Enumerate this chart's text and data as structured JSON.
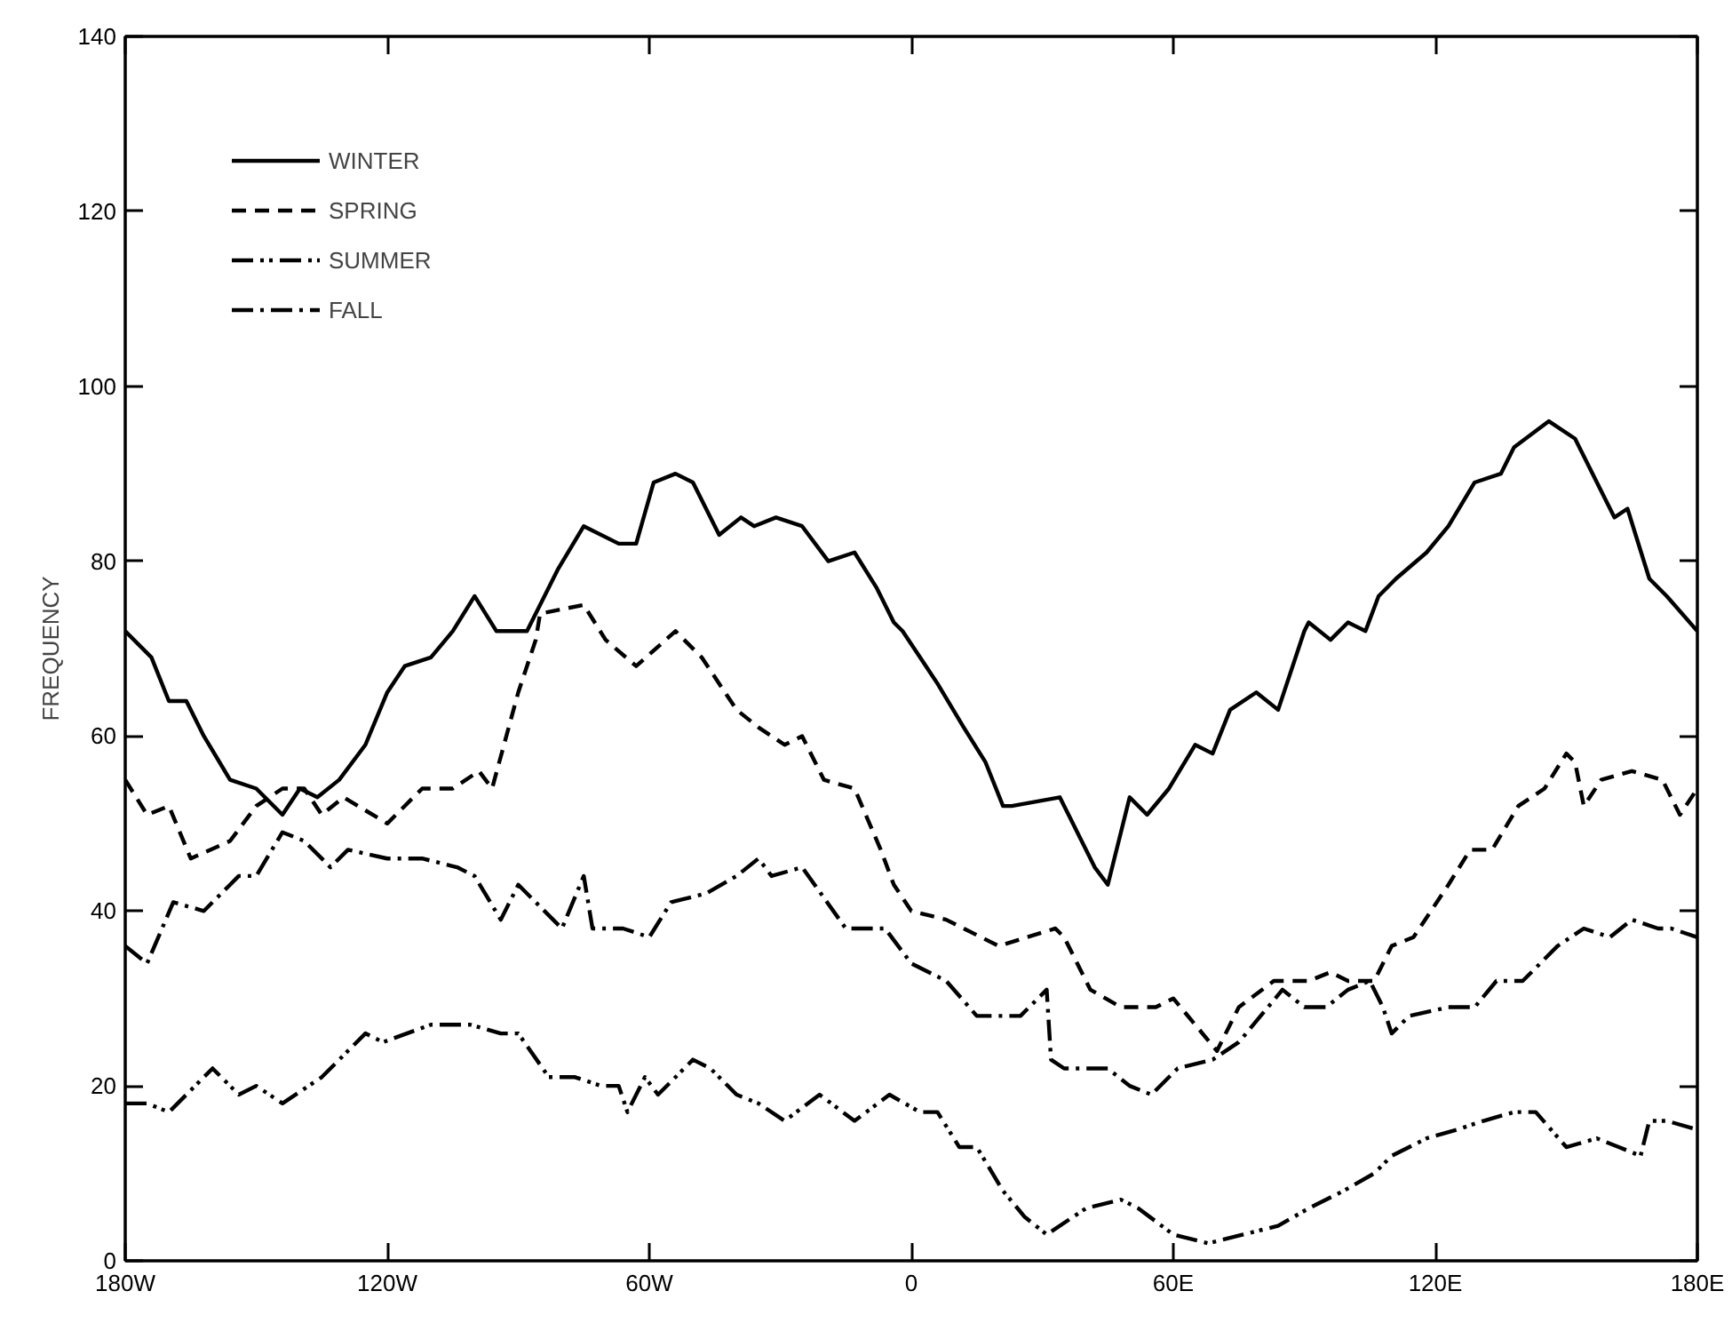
{
  "chart_data": {
    "type": "line",
    "ylabel": "FREQUENCY",
    "xlim": [
      -180,
      180
    ],
    "ylim": [
      0,
      140
    ],
    "xticks": [
      {
        "value": -180,
        "label": "180W"
      },
      {
        "value": -120,
        "label": "120W"
      },
      {
        "value": -60,
        "label": "60W"
      },
      0,
      {
        "value": 60,
        "label": "60E"
      },
      {
        "value": 120,
        "label": "120E"
      },
      {
        "value": 180,
        "label": "180E"
      }
    ],
    "yticks": [
      0,
      20,
      40,
      60,
      80,
      100,
      120,
      140
    ],
    "grid": false,
    "legend": "top left",
    "marker": "none",
    "series": [
      {
        "name": "WINTER",
        "color": "#000000",
        "line_style": "solid",
        "x": [
          -180,
          -174,
          -170,
          -166,
          -162,
          -156,
          -150,
          -144,
          -140,
          -136,
          -131,
          -125,
          -120,
          -116,
          -110,
          -105,
          -100,
          -95,
          -88,
          -81,
          -75,
          -67,
          -63,
          -59,
          -54,
          -50,
          -44,
          -39,
          -36,
          -31,
          -25,
          -19,
          -13,
          -8,
          -4,
          -2,
          2,
          6,
          12,
          17,
          21,
          23,
          34,
          37,
          42,
          45,
          48,
          50,
          54,
          59,
          65,
          69,
          73,
          79,
          84,
          90,
          91,
          96,
          100,
          104,
          107,
          111,
          118,
          123,
          129,
          135,
          138,
          146,
          152,
          157,
          161,
          164,
          169,
          173,
          180
        ],
        "values": [
          72,
          69,
          64,
          64,
          60,
          55,
          54,
          51,
          54,
          53,
          55,
          59,
          65,
          68,
          69,
          72,
          76,
          72,
          72,
          79,
          84,
          82,
          82,
          89,
          90,
          89,
          83,
          85,
          84,
          85,
          84,
          80,
          81,
          77,
          73,
          72,
          69,
          66,
          61,
          57,
          52,
          52,
          53,
          50,
          45,
          43,
          49,
          53,
          51,
          54,
          59,
          58,
          63,
          65,
          63,
          72,
          73,
          71,
          73,
          72,
          76,
          78,
          81,
          84,
          89,
          90,
          93,
          96,
          94,
          89,
          85,
          86,
          78,
          76,
          72
        ]
      },
      {
        "name": "SPRING",
        "color": "#000000",
        "line_style": "dashed",
        "x": [
          -180,
          -175,
          -170,
          -165,
          -156,
          -150,
          -144,
          -139,
          -135,
          -130,
          -120,
          -112,
          -105,
          -99,
          -96,
          -90,
          -86,
          -85,
          -75,
          -70,
          -63,
          -54,
          -48,
          -40,
          -35,
          -29,
          -25,
          -20,
          -13,
          -7,
          -4,
          0,
          8,
          20,
          33,
          35,
          41,
          48,
          56,
          60,
          65,
          70,
          75,
          83,
          91,
          96,
          100,
          106,
          110,
          115,
          123,
          128,
          133,
          139,
          145,
          150,
          152,
          154,
          158,
          165,
          172,
          176,
          180
        ],
        "values": [
          55,
          51,
          52,
          46,
          48,
          52,
          54,
          54,
          51,
          53,
          50,
          54,
          54,
          56,
          54,
          65,
          71,
          74,
          75,
          71,
          68,
          72,
          69,
          63,
          61,
          59,
          60,
          55,
          54,
          47,
          43,
          40,
          39,
          36,
          38,
          37,
          31,
          29,
          29,
          30,
          27,
          24,
          29,
          32,
          32,
          33,
          32,
          32,
          36,
          37,
          43,
          47,
          47,
          52,
          54,
          58,
          57,
          52,
          55,
          56,
          55,
          51,
          54
        ]
      },
      {
        "name": "SUMMER",
        "color": "#000000",
        "line_style": "dashdotdot",
        "x": [
          -180,
          -175,
          -170,
          -166,
          -160,
          -154,
          -150,
          -144,
          -135,
          -125,
          -121,
          -110,
          -101,
          -94,
          -90,
          -83,
          -77,
          -71,
          -67,
          -65,
          -61,
          -58,
          -50,
          -46,
          -40,
          -35,
          -29,
          -21,
          -13,
          -5,
          2,
          6,
          11,
          15,
          21,
          26,
          31,
          40,
          48,
          52,
          60,
          68,
          76,
          84,
          91,
          99,
          106,
          110,
          118,
          125,
          131,
          138,
          143,
          150,
          157,
          162,
          167,
          169,
          173,
          180
        ],
        "values": [
          18,
          18,
          17,
          19,
          22,
          19,
          20,
          18,
          21,
          26,
          25,
          27,
          27,
          26,
          26,
          21,
          21,
          20,
          20,
          17,
          21,
          19,
          23,
          22,
          19,
          18,
          16,
          19,
          16,
          19,
          17,
          17,
          13,
          13,
          8,
          5,
          3,
          6,
          7,
          6,
          3,
          2,
          3,
          4,
          6,
          8,
          10,
          12,
          14,
          15,
          16,
          17,
          17,
          13,
          14,
          13,
          12,
          16,
          16,
          15
        ]
      },
      {
        "name": "FALL",
        "color": "#000000",
        "line_style": "dashdot",
        "x": [
          -180,
          -175,
          -169,
          -162,
          -154,
          -150,
          -144,
          -139,
          -133,
          -129,
          -120,
          -112,
          -104,
          -100,
          -94,
          -90,
          -80,
          -75,
          -73,
          -66,
          -60,
          -55,
          -47,
          -40,
          -35,
          -32,
          -25,
          -15,
          -6,
          0,
          8,
          15,
          25,
          31,
          32,
          35,
          42,
          45,
          50,
          55,
          61,
          69,
          75,
          85,
          90,
          95,
          100,
          105,
          108,
          110,
          114,
          123,
          129,
          134,
          140,
          148,
          154,
          160,
          165,
          171,
          174,
          180
        ],
        "values": [
          36,
          34,
          41,
          40,
          44,
          44,
          49,
          48,
          45,
          47,
          46,
          46,
          45,
          44,
          39,
          43,
          38,
          44,
          38,
          38,
          37,
          41,
          42,
          44,
          46,
          44,
          45,
          38,
          38,
          34,
          32,
          28,
          28,
          31,
          23,
          22,
          22,
          22,
          20,
          19,
          22,
          23,
          25,
          31,
          29,
          29,
          31,
          32,
          29,
          26,
          28,
          29,
          29,
          32,
          32,
          36,
          38,
          37,
          39,
          38,
          38,
          37
        ]
      }
    ]
  }
}
